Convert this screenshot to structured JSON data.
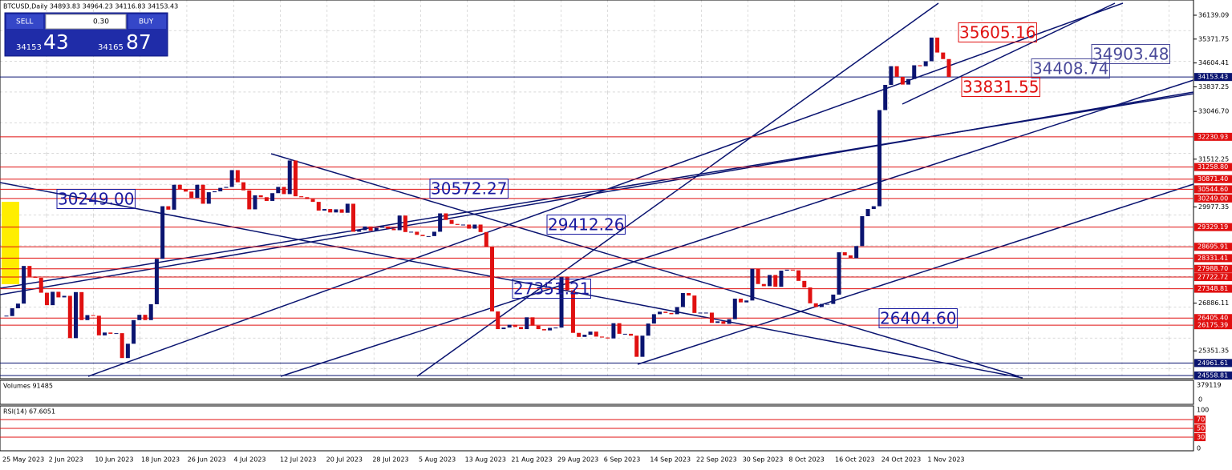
{
  "header": {
    "symbol_line": "BTCUSD,Daily  34893.83 34964.23 34116.83 34153.43"
  },
  "trade_panel": {
    "sell": "SELL",
    "lot": "0.30",
    "buy": "BUY",
    "sell_small": "34153",
    "sell_big": "43",
    "buy_small": "34165",
    "buy_big": "87"
  },
  "chart_data": {
    "type": "candlestick",
    "ylim": [
      24456,
      36628
    ],
    "closes": [
      26470,
      26720,
      26870,
      28080,
      27740,
      27700,
      27220,
      26820,
      27250,
      27070,
      27120,
      25760,
      27240,
      26340,
      26500,
      26480,
      25850,
      25940,
      25900,
      25920,
      25120,
      25580,
      26340,
      26510,
      26340,
      26850,
      28310,
      30000,
      29890,
      30690,
      30550,
      30470,
      30270,
      30690,
      30080,
      30450,
      30480,
      30590,
      30620,
      31160,
      30770,
      30510,
      29900,
      30350,
      30290,
      30170,
      30420,
      30620,
      30390,
      31470,
      30320,
      30290,
      30230,
      30140,
      29860,
      29910,
      29800,
      29900,
      29790,
      30080,
      29180,
      29230,
      29350,
      29210,
      29310,
      29350,
      29280,
      29230,
      29700,
      29170,
      29180,
      29080,
      29040,
      29040,
      29180,
      29770,
      29560,
      29430,
      29400,
      29410,
      29280,
      29410,
      29170,
      28700,
      26620,
      26050,
      26100,
      26190,
      26120,
      26050,
      26430,
      26160,
      26050,
      26010,
      26090,
      26100,
      27720,
      27300,
      25930,
      25800,
      25870,
      25970,
      25810,
      25780,
      25750,
      26240,
      25900,
      25900,
      25840,
      25160,
      25840,
      26230,
      26530,
      26610,
      26570,
      26530,
      26760,
      27210,
      27130,
      26570,
      26580,
      26580,
      26250,
      26300,
      26220,
      26370,
      27030,
      26910,
      26970,
      27990,
      27500,
      27430,
      27790,
      27410,
      27930,
      27960,
      27940,
      27600,
      27390,
      26880,
      26760,
      26860,
      26860,
      27160,
      28520,
      28420,
      28330,
      28720,
      29680,
      29910,
      30000,
      33090,
      33900,
      34500,
      34160,
      33910,
      34090,
      34530,
      34500,
      34660,
      35420,
      34940,
      34730,
      34153.43
    ],
    "x_labels": [
      "25 May 2023",
      "2 Jun 2023",
      "10 Jun 2023",
      "18 Jun 2023",
      "26 Jun 2023",
      "4 Jul 2023",
      "12 Jul 2023",
      "20 Jul 2023",
      "28 Jul 2023",
      "5 Aug 2023",
      "13 Aug 2023",
      "21 Aug 2023",
      "29 Aug 2023",
      "6 Sep 2023",
      "14 Sep 2023",
      "22 Sep 2023",
      "30 Sep 2023",
      "8 Oct 2023",
      "16 Oct 2023",
      "24 Oct 2023",
      "1 Nov 2023"
    ],
    "yticks": [
      36139.09,
      35371.75,
      34604.41,
      33837.25,
      {
        "value": 33046.7,
        "label": "33046.70"
      },
      31512.25,
      29977.35,
      26886.11,
      25351.35
    ],
    "levels": [
      {
        "value": 32230.93,
        "label": "32230.93"
      },
      {
        "value": 31258.8,
        "label": "31258.80"
      },
      {
        "value": 30871.4,
        "label": "30871.40"
      },
      {
        "value": 30544.6,
        "label": "30544.60"
      },
      {
        "value": 30249,
        "label": "30249.00"
      },
      {
        "value": 29329.19,
        "label": "29329.19"
      },
      {
        "value": 28695.91,
        "label": "28695.91"
      },
      {
        "value": 28331.41,
        "label": "28331.41"
      },
      {
        "value": 27988.7,
        "label": "27988.70"
      },
      {
        "value": 27722.72,
        "label": "27722.72"
      },
      {
        "value": 27348.81,
        "label": "27348.81"
      },
      {
        "value": 26405.4,
        "label": "26405.40"
      },
      {
        "value": 26175.39,
        "label": "26175.39"
      }
    ],
    "dark_levels": [
      34153.43,
      24961.61,
      24558.81
    ],
    "annotations": [
      "30249.00",
      "30572.27",
      "29412.26",
      "27351.21",
      "26404.60",
      "34408.74",
      "34903.48",
      "35605.16",
      "33831.55"
    ]
  },
  "volumes": {
    "label": "Volumes 91485",
    "max": "379119",
    "min": "0"
  },
  "rsi": {
    "label": "RSI(14) 67.6051",
    "ticks": [
      "100",
      "70",
      "50",
      "30",
      "0"
    ]
  }
}
